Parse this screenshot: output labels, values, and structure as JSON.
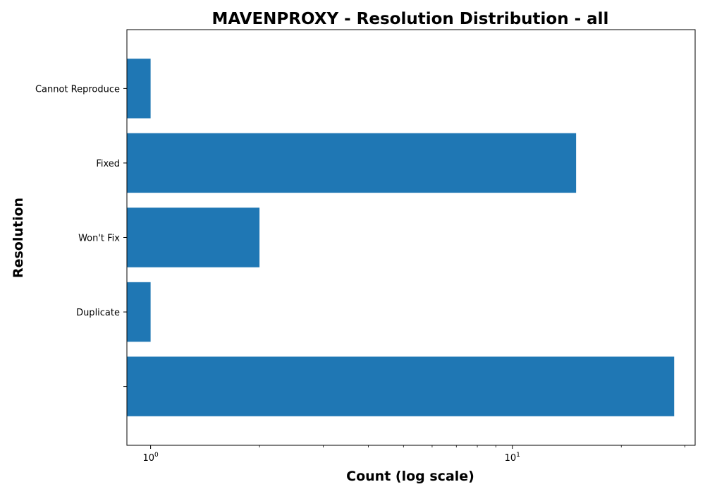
{
  "chart_data": {
    "type": "bar",
    "orientation": "horizontal",
    "title": "MAVENPROXY - Resolution Distribution - all",
    "xlabel": "Count (log scale)",
    "ylabel": "Resolution",
    "xscale": "log",
    "xlim": [
      0.86,
      32
    ],
    "categories": [
      "",
      "Duplicate",
      "Won't Fix",
      "Fixed",
      "Cannot Reproduce"
    ],
    "values": [
      28,
      1,
      2,
      15,
      1
    ],
    "x_major_ticks": [
      {
        "value": 1,
        "base": "10",
        "exp": "0"
      },
      {
        "value": 10,
        "base": "10",
        "exp": "1"
      }
    ],
    "grid": false,
    "bar_color": "#1f77b4"
  }
}
